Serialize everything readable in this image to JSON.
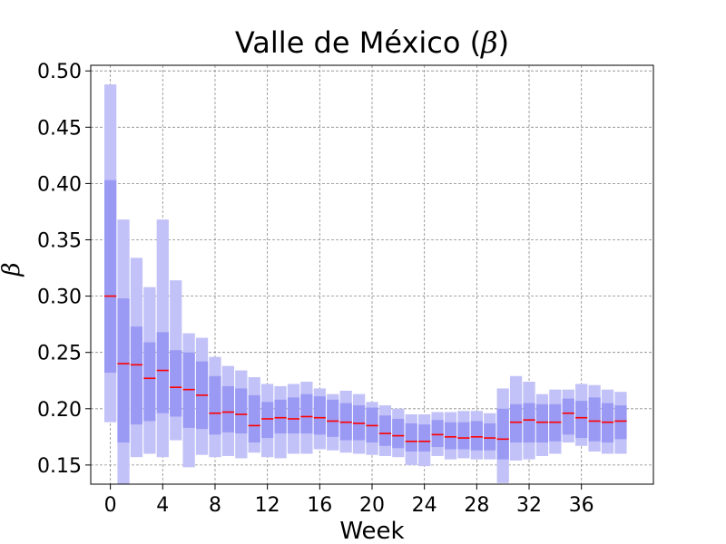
{
  "chart_data": {
    "type": "bar",
    "title": "Valle de México (β)",
    "title_text": "Valle de México (",
    "title_symbol": "β",
    "title_close": ")",
    "xlabel": "Week",
    "ylabel": "β",
    "xlim": [
      -1.5,
      41.5
    ],
    "ylim": [
      0.133,
      0.505
    ],
    "xticks": [
      0,
      4,
      8,
      12,
      16,
      20,
      24,
      28,
      32,
      36
    ],
    "yticks": [
      0.15,
      0.2,
      0.25,
      0.3,
      0.35,
      0.4,
      0.45,
      0.5
    ],
    "ytick_labels": [
      "0.15",
      "0.20",
      "0.25",
      "0.30",
      "0.35",
      "0.40",
      "0.45",
      "0.50"
    ],
    "grid": true,
    "colors": {
      "outer_band": "#c2c2f8",
      "inner_band": "#9a9af4",
      "median": "#ff0000",
      "grid": "#8a8a8a"
    },
    "weeks": [
      0,
      1,
      2,
      3,
      4,
      5,
      6,
      7,
      8,
      9,
      10,
      11,
      12,
      13,
      14,
      15,
      16,
      17,
      18,
      19,
      20,
      21,
      22,
      23,
      24,
      25,
      26,
      27,
      28,
      29,
      30,
      31,
      32,
      33,
      34,
      35,
      36,
      37,
      38,
      39
    ],
    "series": [
      {
        "name": "outer_low",
        "values": [
          0.188,
          0.133,
          0.157,
          0.16,
          0.157,
          0.172,
          0.148,
          0.159,
          0.157,
          0.158,
          0.156,
          0.161,
          0.157,
          0.156,
          0.16,
          0.16,
          0.164,
          0.163,
          0.161,
          0.16,
          0.159,
          0.158,
          0.157,
          0.15,
          0.149,
          0.158,
          0.155,
          0.156,
          0.155,
          0.155,
          0.134,
          0.154,
          0.155,
          0.158,
          0.16,
          0.17,
          0.167,
          0.162,
          0.16,
          0.16
        ]
      },
      {
        "name": "inner_low",
        "values": [
          0.232,
          0.17,
          0.186,
          0.189,
          0.196,
          0.193,
          0.183,
          0.182,
          0.177,
          0.179,
          0.178,
          0.17,
          0.174,
          0.178,
          0.178,
          0.178,
          0.177,
          0.175,
          0.172,
          0.172,
          0.17,
          0.167,
          0.165,
          0.162,
          0.162,
          0.166,
          0.164,
          0.164,
          0.163,
          0.163,
          0.155,
          0.17,
          0.17,
          0.17,
          0.171,
          0.177,
          0.174,
          0.171,
          0.17,
          0.173
        ]
      },
      {
        "name": "median",
        "values": [
          0.3,
          0.24,
          0.239,
          0.227,
          0.234,
          0.219,
          0.217,
          0.212,
          0.196,
          0.197,
          0.195,
          0.185,
          0.191,
          0.192,
          0.191,
          0.193,
          0.192,
          0.189,
          0.188,
          0.187,
          0.185,
          0.178,
          0.176,
          0.171,
          0.171,
          0.177,
          0.175,
          0.174,
          0.175,
          0.174,
          0.173,
          0.188,
          0.19,
          0.188,
          0.188,
          0.196,
          0.192,
          0.189,
          0.188,
          0.189
        ]
      },
      {
        "name": "inner_high",
        "values": [
          0.403,
          0.298,
          0.273,
          0.259,
          0.268,
          0.252,
          0.25,
          0.242,
          0.229,
          0.22,
          0.218,
          0.212,
          0.206,
          0.208,
          0.21,
          0.213,
          0.211,
          0.208,
          0.205,
          0.203,
          0.201,
          0.194,
          0.191,
          0.187,
          0.186,
          0.19,
          0.188,
          0.188,
          0.189,
          0.187,
          0.2,
          0.204,
          0.205,
          0.204,
          0.204,
          0.209,
          0.207,
          0.21,
          0.205,
          0.203
        ]
      },
      {
        "name": "outer_high",
        "values": [
          0.488,
          0.368,
          0.334,
          0.308,
          0.368,
          0.314,
          0.267,
          0.263,
          0.246,
          0.238,
          0.234,
          0.228,
          0.222,
          0.22,
          0.222,
          0.224,
          0.218,
          0.213,
          0.216,
          0.213,
          0.206,
          0.203,
          0.2,
          0.195,
          0.195,
          0.197,
          0.197,
          0.198,
          0.198,
          0.196,
          0.218,
          0.229,
          0.224,
          0.213,
          0.217,
          0.217,
          0.222,
          0.221,
          0.217,
          0.215
        ]
      }
    ]
  }
}
